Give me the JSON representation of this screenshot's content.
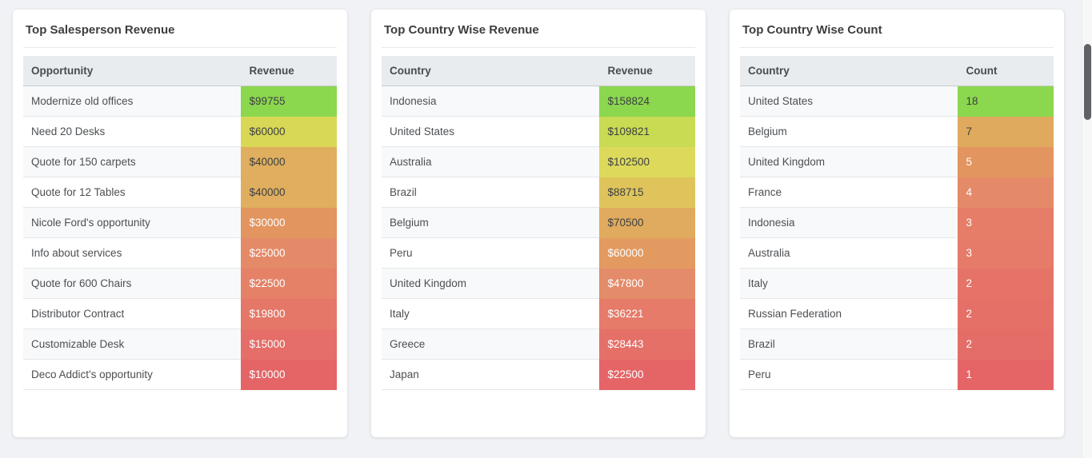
{
  "page": {
    "background": "#f0f2f5"
  },
  "scrollbar": {
    "thumb_color": "#5f6368"
  },
  "cards": [
    {
      "title": "Top Salesperson Revenue",
      "columns": [
        "Opportunity",
        "Revenue"
      ],
      "rows": [
        {
          "label": "Modernize old offices",
          "value": "$99755",
          "bg": "#8bd74e",
          "fg": "#3d4042"
        },
        {
          "label": "Need 20 Desks",
          "value": "$60000",
          "bg": "#d9d856",
          "fg": "#3d4042"
        },
        {
          "label": "Quote for 150 carpets",
          "value": "$40000",
          "bg": "#dfae5e",
          "fg": "#3d4042"
        },
        {
          "label": "Quote for 12 Tables",
          "value": "$40000",
          "bg": "#dfae5e",
          "fg": "#3d4042"
        },
        {
          "label": "Nicole Ford's opportunity",
          "value": "$30000",
          "bg": "#e2955f",
          "fg": "#ffffff"
        },
        {
          "label": "Info about services",
          "value": "$25000",
          "bg": "#e58a68",
          "fg": "#ffffff"
        },
        {
          "label": "Quote for 600 Chairs",
          "value": "$22500",
          "bg": "#e58167",
          "fg": "#ffffff"
        },
        {
          "label": "Distributor Contract",
          "value": "$19800",
          "bg": "#e57768",
          "fg": "#ffffff"
        },
        {
          "label": "Customizable Desk",
          "value": "$15000",
          "bg": "#e56e68",
          "fg": "#ffffff"
        },
        {
          "label": "Deco Addict's opportunity",
          "value": "$10000",
          "bg": "#e56567",
          "fg": "#ffffff"
        }
      ]
    },
    {
      "title": "Top Country Wise Revenue",
      "columns": [
        "Country",
        "Revenue"
      ],
      "rows": [
        {
          "label": "Indonesia",
          "value": "$158824",
          "bg": "#8bd74e",
          "fg": "#3d4042"
        },
        {
          "label": "United States",
          "value": "$109821",
          "bg": "#c9da53",
          "fg": "#3d4042"
        },
        {
          "label": "Australia",
          "value": "$102500",
          "bg": "#ddd95b",
          "fg": "#3d4042"
        },
        {
          "label": "Brazil",
          "value": "$88715",
          "bg": "#dfc45c",
          "fg": "#3d4042"
        },
        {
          "label": "Belgium",
          "value": "$70500",
          "bg": "#e0ab5e",
          "fg": "#3d4042"
        },
        {
          "label": "Peru",
          "value": "$60000",
          "bg": "#e29a60",
          "fg": "#ffffff"
        },
        {
          "label": "United Kingdom",
          "value": "$47800",
          "bg": "#e48b69",
          "fg": "#ffffff"
        },
        {
          "label": "Italy",
          "value": "$36221",
          "bg": "#e57b68",
          "fg": "#ffffff"
        },
        {
          "label": "Greece",
          "value": "$28443",
          "bg": "#e57068",
          "fg": "#ffffff"
        },
        {
          "label": "Japan",
          "value": "$22500",
          "bg": "#e56567",
          "fg": "#ffffff"
        }
      ]
    },
    {
      "title": "Top Country Wise Count",
      "columns": [
        "Country",
        "Count"
      ],
      "rows": [
        {
          "label": "United States",
          "value": "18",
          "bg": "#8bd74e",
          "fg": "#3d4042"
        },
        {
          "label": "Belgium",
          "value": "7",
          "bg": "#dfaa5e",
          "fg": "#3d4042"
        },
        {
          "label": "United Kingdom",
          "value": "5",
          "bg": "#e2955f",
          "fg": "#ffffff"
        },
        {
          "label": "France",
          "value": "4",
          "bg": "#e48a69",
          "fg": "#ffffff"
        },
        {
          "label": "Indonesia",
          "value": "3",
          "bg": "#e57d68",
          "fg": "#ffffff"
        },
        {
          "label": "Australia",
          "value": "3",
          "bg": "#e57b68",
          "fg": "#ffffff"
        },
        {
          "label": "Italy",
          "value": "2",
          "bg": "#e57368",
          "fg": "#ffffff"
        },
        {
          "label": "Russian Federation",
          "value": "2",
          "bg": "#e57068",
          "fg": "#ffffff"
        },
        {
          "label": "Brazil",
          "value": "2",
          "bg": "#e56d68",
          "fg": "#ffffff"
        },
        {
          "label": "Peru",
          "value": "1",
          "bg": "#e56567",
          "fg": "#ffffff"
        }
      ]
    }
  ]
}
